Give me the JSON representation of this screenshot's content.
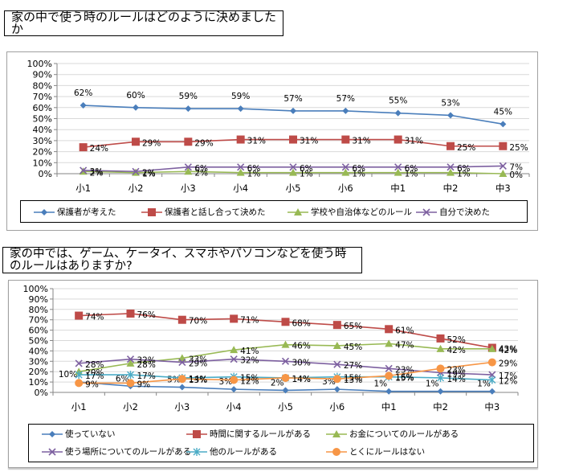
{
  "section1": {
    "title": "家の中で使う時のルールはどのように決めましたか"
  },
  "section2": {
    "title": "家の中では、ゲーム、ケータイ、スマホやパソコンなどを使う時のルールはありますか?"
  },
  "chart_data": [
    {
      "type": "line",
      "title": "家の中で使う時のルールはどのように決めましたか",
      "xlabel": "",
      "ylabel": "",
      "categories": [
        "小1",
        "小2",
        "小3",
        "小4",
        "小5",
        "小6",
        "中1",
        "中2",
        "中3"
      ],
      "y_ticks": [
        "0%",
        "10%",
        "20%",
        "30%",
        "40%",
        "50%",
        "60%",
        "70%",
        "80%",
        "90%",
        "100%"
      ],
      "ylim": [
        0,
        100
      ],
      "grid": true,
      "legend_position": "bottom",
      "series": [
        {
          "name": "保護者が考えた",
          "color": "#4a7ebb",
          "marker": "diamond",
          "values": [
            62,
            60,
            59,
            59,
            57,
            57,
            55,
            53,
            45
          ],
          "label_pos": "above"
        },
        {
          "name": "保護者と話し合って決めた",
          "color": "#be4b48",
          "marker": "square",
          "values": [
            24,
            29,
            29,
            31,
            31,
            31,
            31,
            25,
            25
          ],
          "label_pos": "right"
        },
        {
          "name": "学校や自治体などのルール",
          "color": "#98b954",
          "marker": "triangle",
          "values": [
            2,
            1,
            2,
            1,
            1,
            1,
            1,
            1,
            0
          ],
          "label_pos": "right"
        },
        {
          "name": "自分で決めた",
          "color": "#7d60a0",
          "marker": "x",
          "values": [
            3,
            2,
            6,
            6,
            6,
            6,
            6,
            6,
            7
          ],
          "label_pos": "right"
        }
      ]
    },
    {
      "type": "line",
      "title": "家の中では、ゲーム、ケータイ、スマホやパソコンなどを使う時のルールはありますか?",
      "xlabel": "",
      "ylabel": "",
      "categories": [
        "小1",
        "小2",
        "小3",
        "小4",
        "小5",
        "小6",
        "中1",
        "中2",
        "中3"
      ],
      "y_ticks": [
        "0%",
        "10%",
        "20%",
        "30%",
        "40%",
        "50%",
        "60%",
        "70%",
        "80%",
        "90%",
        "100%"
      ],
      "ylim": [
        0,
        100
      ],
      "grid": true,
      "legend_position": "bottom",
      "series": [
        {
          "name": "使っていない",
          "color": "#4a7ebb",
          "marker": "diamond",
          "values": [
            10,
            6,
            5,
            3,
            2,
            3,
            1,
            1,
            1
          ],
          "label_pos": "above-left"
        },
        {
          "name": "時間に関するルールがある",
          "color": "#be4b48",
          "marker": "square",
          "values": [
            74,
            76,
            70,
            71,
            68,
            65,
            61,
            52,
            43
          ],
          "label_pos": "right"
        },
        {
          "name": "お金についてのルールがある",
          "color": "#98b954",
          "marker": "triangle",
          "values": [
            20,
            28,
            33,
            41,
            46,
            45,
            47,
            42,
            42
          ],
          "label_pos": "right"
        },
        {
          "name": "使う場所についてのルールがある",
          "color": "#7d60a0",
          "marker": "x",
          "values": [
            28,
            32,
            29,
            32,
            30,
            27,
            23,
            19,
            17
          ],
          "label_pos": "right"
        },
        {
          "name": "他のルールがある",
          "color": "#4bacc6",
          "marker": "star",
          "values": [
            17,
            17,
            14,
            15,
            14,
            15,
            15,
            14,
            12
          ],
          "label_pos": "right"
        },
        {
          "name": "とくにルールはない",
          "color": "#f79646",
          "marker": "circle",
          "values": [
            9,
            9,
            13,
            12,
            14,
            13,
            16,
            23,
            29
          ],
          "label_pos": "right"
        }
      ]
    }
  ]
}
